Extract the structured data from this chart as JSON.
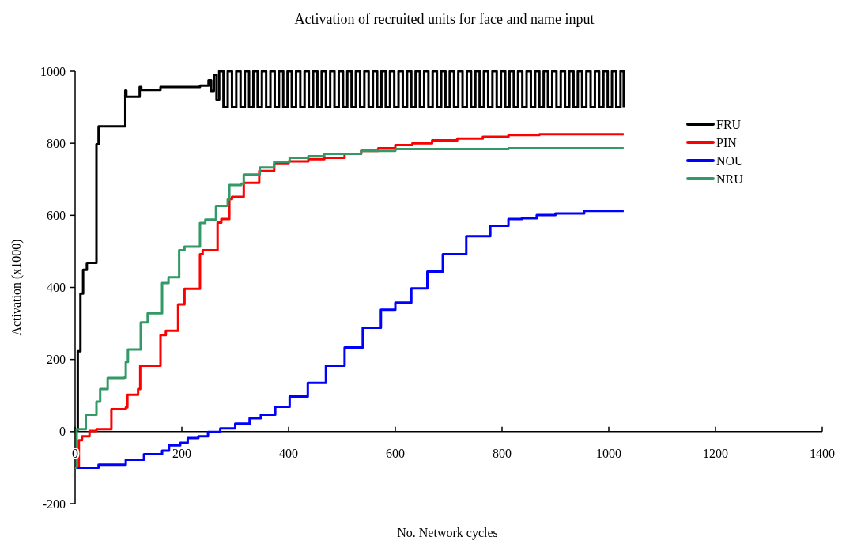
{
  "chart_data": {
    "type": "step",
    "title": "Activation of recruited units for face and name input",
    "xlabel": "No. Network cycles",
    "ylabel": "Activation (x1000)",
    "xlim": [
      0,
      1400
    ],
    "xticks": [
      0,
      200,
      400,
      600,
      800,
      1000,
      1200,
      1400
    ],
    "ylim": [
      -200,
      1000
    ],
    "yticks": [
      -200,
      0,
      200,
      400,
      600,
      800,
      1000
    ],
    "grid": false,
    "legend": "right",
    "series": [
      {
        "name": "FRU",
        "color": "#000000",
        "x": [
          0,
          2,
          5,
          10,
          15,
          22,
          40,
          44,
          94,
          96,
          121,
          124,
          160,
          234,
          250,
          255,
          260,
          265,
          270,
          278,
          286,
          294,
          302,
          310,
          318,
          326,
          334,
          342,
          350,
          358,
          366,
          374,
          382,
          390,
          398,
          406,
          414,
          422,
          430,
          438,
          446,
          454,
          462,
          470,
          478,
          486,
          494,
          502,
          510,
          518,
          526,
          534,
          542,
          550,
          558,
          566,
          574,
          582,
          590,
          598,
          606,
          614,
          622,
          630,
          638,
          646,
          654,
          662,
          670,
          678,
          686,
          694,
          702,
          710,
          718,
          726,
          734,
          742,
          750,
          758,
          766,
          774,
          782,
          790,
          798,
          806,
          814,
          822,
          830,
          838,
          846,
          854,
          862,
          870,
          878,
          886,
          894,
          902,
          910,
          918,
          926,
          934,
          942,
          950,
          958,
          966,
          974,
          982,
          990,
          998,
          1006,
          1014,
          1022,
          1028
        ],
        "values": [
          -100,
          5,
          223,
          383,
          449,
          468,
          797,
          847,
          946,
          929,
          956,
          948,
          956,
          960,
          975,
          945,
          990,
          920,
          1000,
          900,
          1000,
          900,
          1000,
          900,
          1000,
          900,
          1000,
          900,
          1000,
          900,
          1000,
          900,
          1000,
          900,
          1000,
          900,
          1000,
          900,
          1000,
          900,
          1000,
          900,
          1000,
          900,
          1000,
          900,
          1000,
          900,
          1000,
          900,
          1000,
          900,
          1000,
          900,
          1000,
          900,
          1000,
          900,
          1000,
          900,
          1000,
          900,
          1000,
          900,
          1000,
          900,
          1000,
          900,
          1000,
          900,
          1000,
          900,
          1000,
          900,
          1000,
          900,
          1000,
          900,
          1000,
          900,
          1000,
          900,
          1000,
          900,
          1000,
          900,
          1000,
          900,
          1000,
          900,
          1000,
          900,
          1000,
          900,
          1000,
          900,
          1000,
          900,
          1000,
          900,
          1000,
          900,
          1000,
          900,
          1000,
          900,
          1000,
          900,
          1000,
          900,
          1000,
          900,
          1000,
          900
        ]
      },
      {
        "name": "PIN",
        "color": "#ff0000",
        "x": [
          0,
          7,
          13,
          27,
          40,
          68,
          95,
          98,
          118,
          122,
          156,
          160,
          170,
          193,
          205,
          234,
          239,
          262,
          267,
          274,
          286,
          289,
          294,
          316,
          338,
          345,
          373,
          400,
          437,
          467,
          505,
          536,
          568,
          600,
          632,
          669,
          716,
          764,
          812,
          870,
          1028
        ],
        "values": [
          -100,
          -24,
          -13,
          2,
          7,
          62,
          67,
          102,
          118,
          183,
          183,
          268,
          280,
          353,
          396,
          492,
          503,
          503,
          580,
          590,
          590,
          645,
          651,
          690,
          690,
          723,
          743,
          750,
          756,
          760,
          771,
          779,
          786,
          795,
          800,
          808,
          813,
          818,
          823,
          825,
          825
        ]
      },
      {
        "name": "NOU",
        "color": "#0000ff",
        "x": [
          0,
          44,
          95,
          129,
          163,
          176,
          197,
          211,
          231,
          249,
          272,
          300,
          327,
          348,
          375,
          402,
          436,
          470,
          505,
          539,
          573,
          600,
          630,
          660,
          689,
          733,
          778,
          812,
          837,
          865,
          900,
          954,
          1028
        ],
        "values": [
          -100,
          -92,
          -78,
          -63,
          -53,
          -38,
          -31,
          -18,
          -13,
          -1,
          9,
          22,
          37,
          47,
          69,
          97,
          135,
          183,
          233,
          288,
          338,
          358,
          397,
          444,
          492,
          542,
          571,
          590,
          592,
          601,
          605,
          612,
          612
        ]
      },
      {
        "name": "NRU",
        "color": "#339966",
        "x": [
          0,
          3,
          20,
          40,
          47,
          61,
          92,
          95,
          99,
          123,
          136,
          163,
          175,
          195,
          205,
          234,
          244,
          264,
          286,
          289,
          311,
          316,
          346,
          373,
          402,
          437,
          467,
          536,
          600,
          812,
          1028
        ],
        "values": [
          -100,
          7,
          47,
          83,
          118,
          149,
          150,
          193,
          228,
          303,
          328,
          412,
          428,
          503,
          513,
          579,
          588,
          626,
          644,
          684,
          688,
          713,
          733,
          749,
          760,
          764,
          771,
          779,
          784,
          786,
          786
        ]
      }
    ]
  }
}
